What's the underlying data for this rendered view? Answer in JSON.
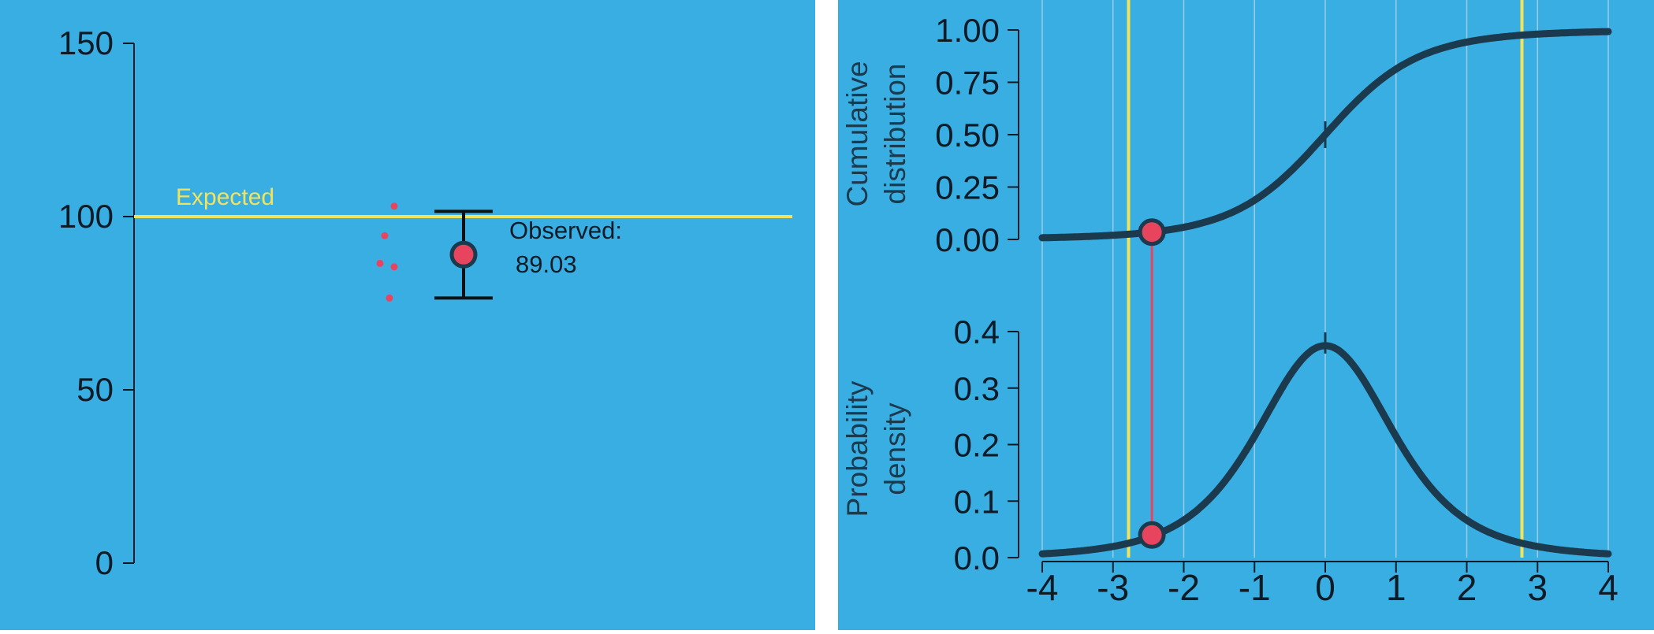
{
  "colors": {
    "panel_bg": "#39AEE3",
    "page_bg": "#FFFFFF",
    "expected_line": "#F2E35C",
    "observed_point": "#E8445E",
    "sample_point": "#E8445E",
    "curve": "#1B3A4E",
    "connector": "#E8445E",
    "axis": "#0C1B26",
    "grid": "#9CCBE6",
    "critical_line": "#F2E35C"
  },
  "chart_data": [
    {
      "type": "scatter",
      "title": "",
      "ylim": [
        0,
        150
      ],
      "y_ticks": [
        0,
        50,
        100,
        150
      ],
      "y_tick_labels": [
        "0",
        "50",
        "100",
        "150"
      ],
      "expected": {
        "label": "Expected",
        "value": 100
      },
      "samples": [
        {
          "x": 1.0,
          "y": 103
        },
        {
          "x": 0.96,
          "y": 94.5
        },
        {
          "x": 0.94,
          "y": 86.5
        },
        {
          "x": 1.0,
          "y": 85.5
        },
        {
          "x": 0.98,
          "y": 76.5
        }
      ],
      "observed": {
        "label_line1": "Observed:",
        "label_line2": "89.03",
        "value": 89.03,
        "error_low": 76.5,
        "error_high": 101.5
      }
    },
    {
      "type": "line",
      "ylabel": "Cumulative distribution",
      "ylabel_lines": [
        "Cumulative",
        "distribution"
      ],
      "xlim": [
        -4,
        4
      ],
      "ylim": [
        0,
        1
      ],
      "y_ticks": [
        0,
        0.25,
        0.5,
        0.75,
        1
      ],
      "y_tick_labels": [
        "0.00",
        "0.25",
        "0.50",
        "0.75",
        "1.00"
      ],
      "critical_values": [
        -2.78,
        2.78
      ],
      "marked_point": {
        "x": -2.45,
        "y": 0.035
      },
      "distribution": "t",
      "degrees_of_freedom": 4
    },
    {
      "type": "line",
      "ylabel": "Probability density",
      "ylabel_lines": [
        "Probability",
        "density"
      ],
      "xlim": [
        -4,
        4
      ],
      "ylim": [
        0,
        0.4
      ],
      "x_ticks": [
        -4,
        -3,
        -2,
        -1,
        0,
        1,
        2,
        3,
        4
      ],
      "x_tick_labels": [
        "-4",
        "-3",
        "-2",
        "-1",
        "0",
        "1",
        "2",
        "3",
        "4"
      ],
      "y_ticks": [
        0,
        0.1,
        0.2,
        0.3,
        0.4
      ],
      "y_tick_labels": [
        "0.0",
        "0.1",
        "0.2",
        "0.3",
        "0.4"
      ],
      "critical_values": [
        -2.78,
        2.78
      ],
      "marked_point": {
        "x": -2.45,
        "y": 0.04
      },
      "distribution": "t",
      "degrees_of_freedom": 4
    }
  ]
}
